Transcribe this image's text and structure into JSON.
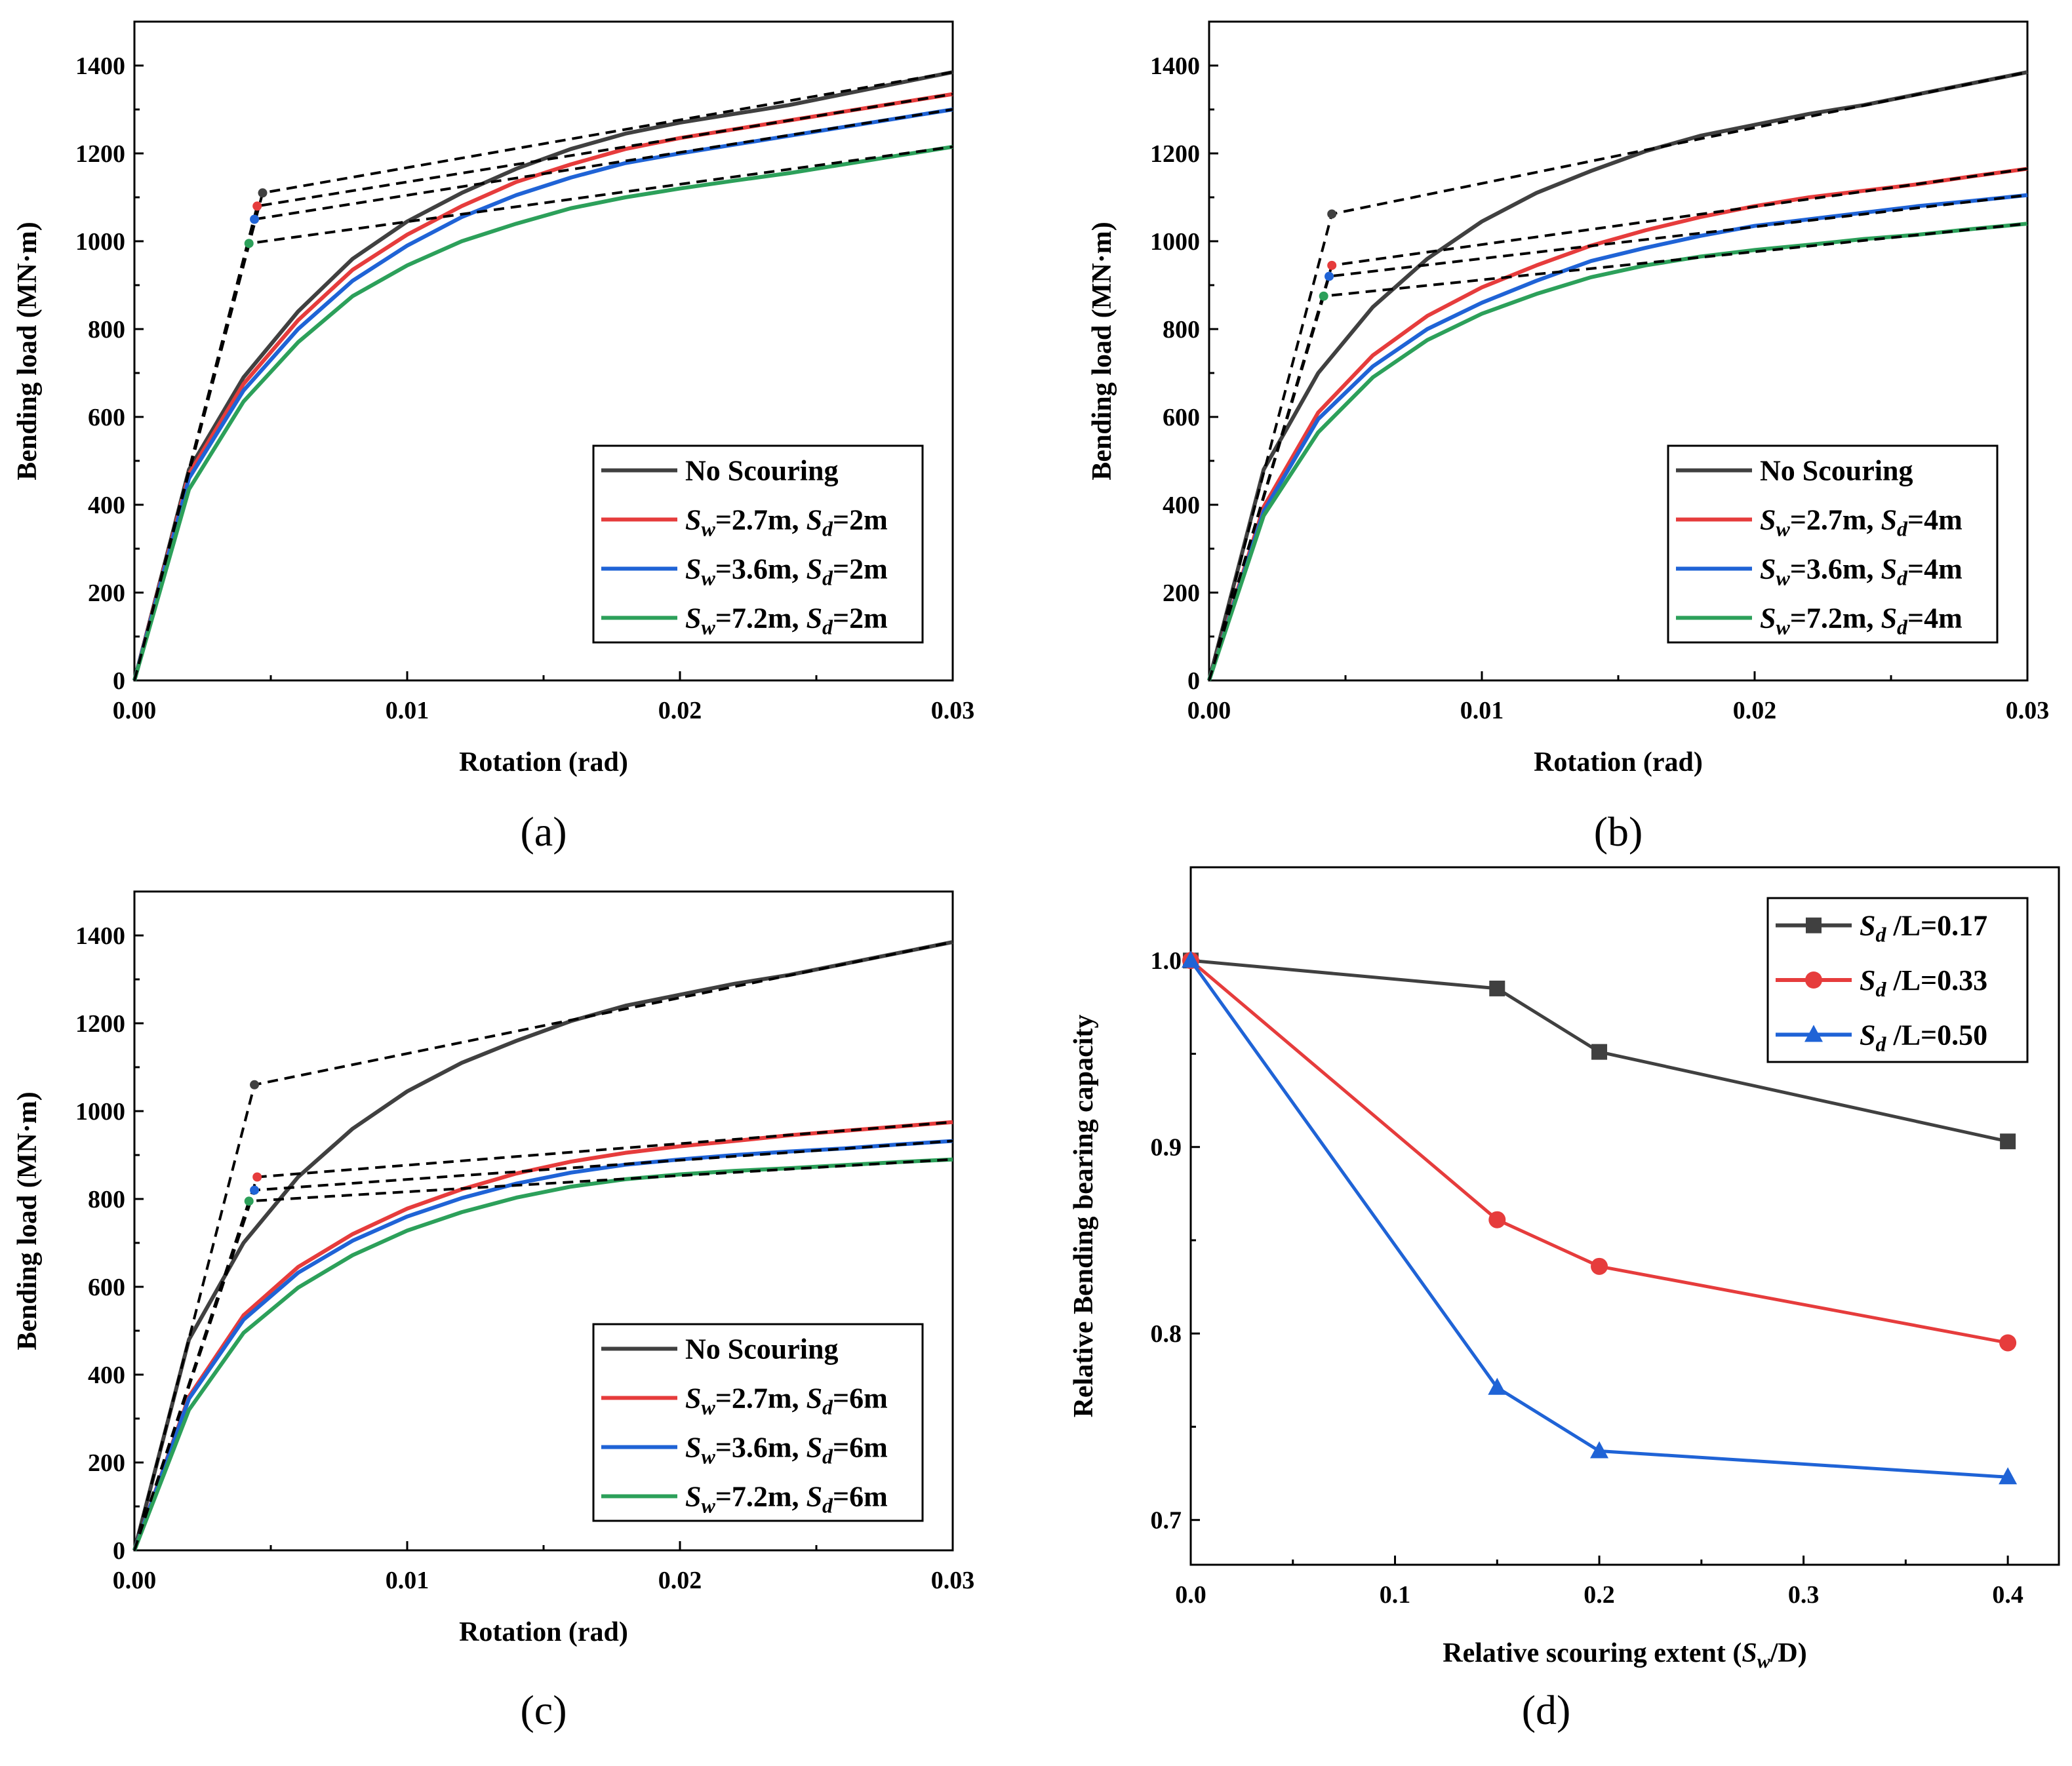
{
  "chart_data": [
    {
      "type": "line",
      "panel_label": "(a)",
      "xlabel": "Rotation (rad)",
      "ylabel": "Bending load (MN·m)",
      "xlim": [
        0,
        0.03
      ],
      "ylim": [
        0,
        1500
      ],
      "xticks": [
        0,
        0.01,
        0.02,
        0.03
      ],
      "xtick_labels": [
        "0.00",
        "0.01",
        "0.02",
        "0.03"
      ],
      "yticks": [
        0,
        200,
        400,
        600,
        800,
        1000,
        1200,
        1400
      ],
      "ytick_labels": [
        "0",
        "200",
        "400",
        "600",
        "800",
        "1000",
        "1200",
        "1400"
      ],
      "legend_position": "bottom-right",
      "x": [
        0,
        0.002,
        0.004,
        0.006,
        0.008,
        0.01,
        0.012,
        0.014,
        0.016,
        0.018,
        0.02,
        0.022,
        0.024,
        0.026,
        0.028,
        0.03
      ],
      "series": [
        {
          "name": "No Scouring",
          "legend": {
            "plain": "No Scouring"
          },
          "color": "#404040",
          "values": [
            0,
            480,
            690,
            840,
            960,
            1045,
            1110,
            1165,
            1210,
            1245,
            1270,
            1290,
            1310,
            1335,
            1360,
            1385
          ],
          "yield": [
            0.0047,
            1110
          ]
        },
        {
          "name": "Sw=2.7m, Sd=2m",
          "legend": {
            "sw": "=2.7m, ",
            "sd": "=2m"
          },
          "color": "#e63c3c",
          "values": [
            0,
            470,
            675,
            820,
            935,
            1015,
            1080,
            1135,
            1175,
            1210,
            1235,
            1255,
            1275,
            1295,
            1315,
            1335
          ],
          "yield": [
            0.0045,
            1080
          ]
        },
        {
          "name": "Sw=3.6m, Sd=2m",
          "legend": {
            "sw": "=3.6m, ",
            "sd": "=2m"
          },
          "color": "#1f63d6",
          "values": [
            0,
            460,
            660,
            800,
            910,
            990,
            1055,
            1105,
            1145,
            1178,
            1200,
            1220,
            1240,
            1260,
            1280,
            1300
          ],
          "yield": [
            0.0044,
            1050
          ]
        },
        {
          "name": "Sw=7.2m, Sd=2m",
          "legend": {
            "sw": "=7.2m, ",
            "sd": "=2m"
          },
          "color": "#2ca05a",
          "values": [
            0,
            435,
            635,
            770,
            875,
            945,
            1000,
            1040,
            1075,
            1100,
            1120,
            1138,
            1155,
            1175,
            1195,
            1215
          ],
          "yield": [
            0.0042,
            995
          ]
        }
      ]
    },
    {
      "type": "line",
      "panel_label": "(b)",
      "xlabel": "Rotation (rad)",
      "ylabel": "Bending load (MN·m)",
      "xlim": [
        0,
        0.03
      ],
      "ylim": [
        0,
        1500
      ],
      "xticks": [
        0,
        0.01,
        0.02,
        0.03
      ],
      "xtick_labels": [
        "0.00",
        "0.01",
        "0.02",
        "0.03"
      ],
      "yticks": [
        0,
        200,
        400,
        600,
        800,
        1000,
        1200,
        1400
      ],
      "ytick_labels": [
        "0",
        "200",
        "400",
        "600",
        "800",
        "1000",
        "1200",
        "1400"
      ],
      "legend_position": "bottom-right",
      "x": [
        0,
        0.002,
        0.004,
        0.006,
        0.008,
        0.01,
        0.012,
        0.014,
        0.016,
        0.018,
        0.02,
        0.022,
        0.024,
        0.026,
        0.028,
        0.03
      ],
      "series": [
        {
          "name": "No Scouring",
          "legend": {
            "plain": "No Scouring"
          },
          "color": "#404040",
          "values": [
            0,
            480,
            700,
            850,
            960,
            1045,
            1110,
            1160,
            1205,
            1240,
            1265,
            1290,
            1310,
            1335,
            1360,
            1385
          ],
          "yield": [
            0.0045,
            1062
          ]
        },
        {
          "name": "Sw=2.7m, Sd=4m",
          "legend": {
            "sw": "=2.7m, ",
            "sd": "=4m"
          },
          "color": "#e63c3c",
          "values": [
            0,
            395,
            610,
            740,
            830,
            895,
            945,
            990,
            1025,
            1055,
            1080,
            1100,
            1115,
            1130,
            1148,
            1165
          ],
          "yield": [
            0.0045,
            945
          ]
        },
        {
          "name": "Sw=3.6m, Sd=4m",
          "legend": {
            "sw": "=3.6m, ",
            "sd": "=4m"
          },
          "color": "#1f63d6",
          "values": [
            0,
            385,
            595,
            715,
            800,
            860,
            910,
            955,
            985,
            1012,
            1035,
            1050,
            1065,
            1080,
            1092,
            1105
          ],
          "yield": [
            0.0044,
            920
          ]
        },
        {
          "name": "Sw=7.2m, Sd=4m",
          "legend": {
            "sw": "=7.2m, ",
            "sd": "=4m"
          },
          "color": "#2ca05a",
          "values": [
            0,
            375,
            565,
            690,
            775,
            835,
            880,
            918,
            945,
            965,
            980,
            992,
            1005,
            1015,
            1028,
            1040
          ],
          "yield": [
            0.0042,
            875
          ]
        }
      ]
    },
    {
      "type": "line",
      "panel_label": "(c)",
      "xlabel": "Rotation (rad)",
      "ylabel": "Bending load (MN·m)",
      "xlim": [
        0,
        0.03
      ],
      "ylim": [
        0,
        1500
      ],
      "xticks": [
        0,
        0.01,
        0.02,
        0.03
      ],
      "xtick_labels": [
        "0.00",
        "0.01",
        "0.02",
        "0.03"
      ],
      "yticks": [
        0,
        200,
        400,
        600,
        800,
        1000,
        1200,
        1400
      ],
      "ytick_labels": [
        "0",
        "200",
        "400",
        "600",
        "800",
        "1000",
        "1200",
        "1400"
      ],
      "legend_position": "bottom-right",
      "x": [
        0,
        0.002,
        0.004,
        0.006,
        0.008,
        0.01,
        0.012,
        0.014,
        0.016,
        0.018,
        0.02,
        0.022,
        0.024,
        0.026,
        0.028,
        0.03
      ],
      "series": [
        {
          "name": "No Scouring",
          "legend": {
            "plain": "No Scouring"
          },
          "color": "#404040",
          "values": [
            0,
            480,
            700,
            850,
            960,
            1045,
            1110,
            1160,
            1205,
            1240,
            1265,
            1290,
            1310,
            1335,
            1360,
            1385
          ],
          "yield": [
            0.0044,
            1060
          ]
        },
        {
          "name": "Sw=2.7m, Sd=6m",
          "legend": {
            "sw": "=2.7m, ",
            "sd": "=6m"
          },
          "color": "#e63c3c",
          "values": [
            0,
            350,
            535,
            645,
            720,
            778,
            822,
            858,
            885,
            905,
            920,
            932,
            945,
            955,
            965,
            975
          ],
          "yield": [
            0.0045,
            850
          ]
        },
        {
          "name": "Sw=3.6m, Sd=6m",
          "legend": {
            "sw": "=3.6m, ",
            "sd": "=6m"
          },
          "color": "#1f63d6",
          "values": [
            0,
            345,
            525,
            632,
            705,
            760,
            802,
            835,
            860,
            878,
            890,
            900,
            908,
            915,
            924,
            932
          ],
          "yield": [
            0.0044,
            820
          ]
        },
        {
          "name": "Sw=7.2m, Sd=6m",
          "legend": {
            "sw": "=7.2m, ",
            "sd": "=6m"
          },
          "color": "#2ca05a",
          "values": [
            0,
            320,
            495,
            598,
            672,
            728,
            770,
            803,
            828,
            845,
            856,
            864,
            870,
            877,
            884,
            890
          ],
          "yield": [
            0.0042,
            795
          ]
        }
      ]
    },
    {
      "type": "line",
      "panel_label": "(d)",
      "xlabel": "Relative scouring extent (Sw/D)",
      "xlabel_parts": {
        "pre": "Relative scouring extent (",
        "italic": "S",
        "sub": "w",
        "post": "/D)"
      },
      "ylabel": "Relative Bending bearing capacity",
      "xlim": [
        0,
        0.425
      ],
      "ylim": [
        0.676,
        1.05
      ],
      "xticks": [
        0,
        0.1,
        0.2,
        0.3,
        0.4
      ],
      "xtick_labels": [
        "0.0",
        "0.1",
        "0.2",
        "0.3",
        "0.4"
      ],
      "yticks": [
        0.7,
        0.8,
        0.9,
        1.0
      ],
      "ytick_labels": [
        "0.7",
        "0.8",
        "0.9",
        "1.0"
      ],
      "legend_position": "top-right",
      "x": [
        0,
        0.15,
        0.2,
        0.4
      ],
      "series": [
        {
          "name": "Sd/L=0.17",
          "legend": {
            "value": " /L=0.17"
          },
          "color": "#404040",
          "marker": "square",
          "values": [
            1.0,
            0.985,
            0.951,
            0.903
          ]
        },
        {
          "name": "Sd/L=0.33",
          "legend": {
            "value": " /L=0.33"
          },
          "color": "#e63c3c",
          "marker": "circle",
          "values": [
            1.0,
            0.861,
            0.836,
            0.795
          ]
        },
        {
          "name": "Sd/L=0.50",
          "legend": {
            "value": " /L=0.50"
          },
          "color": "#1f63d6",
          "marker": "triangle",
          "values": [
            1.0,
            0.771,
            0.737,
            0.723
          ]
        }
      ]
    }
  ]
}
